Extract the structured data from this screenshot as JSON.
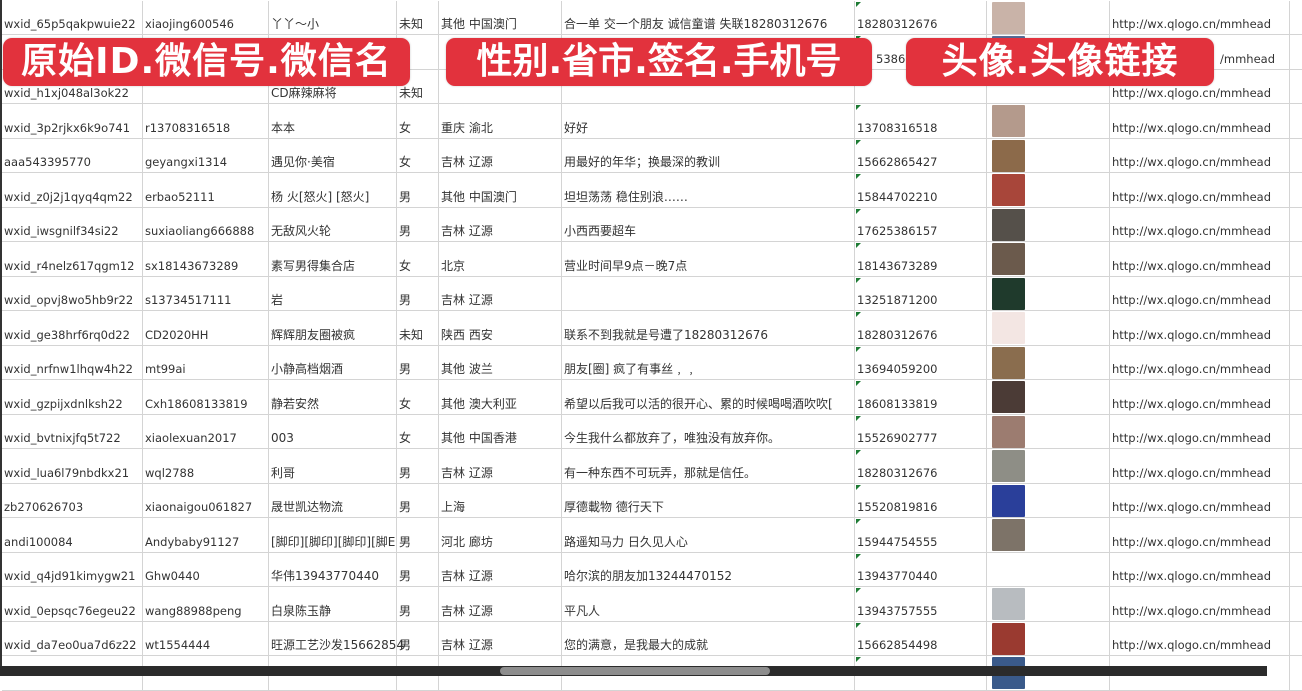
{
  "overlay_labels": [
    "原始ID.微信号.微信名",
    "性别.省市.签名.手机号",
    "头像.头像链接"
  ],
  "rows": [
    {
      "id": "wxid_65p5qakpwuie22",
      "wechat": "xiaojing600546",
      "name": "丫丫～小",
      "gender": "未知",
      "region": "其他 中国澳门",
      "signature": "合一单 交一个朋友 诚信童谱 失联18280312676",
      "phone": "18280312676",
      "avatar_color": "#c9b3a8",
      "link": "http://wx.qlogo.cn/mmhead"
    },
    {
      "id": "",
      "wechat": "",
      "name": "",
      "gender": "",
      "region": "",
      "signature": "",
      "phone": "5386",
      "avatar_color": "#5a6f9a",
      "link": "/mmhead"
    },
    {
      "id": "wxid_h1xj048al3ok22",
      "wechat": "",
      "name": "CD麻辣麻将",
      "gender": "未知",
      "region": "",
      "signature": "",
      "phone": "",
      "avatar_color": "",
      "link": "http://wx.qlogo.cn/mmhead"
    },
    {
      "id": "wxid_3p2rjkx6k9o741",
      "wechat": "r13708316518",
      "name": "本本",
      "gender": "女",
      "region": "重庆 渝北",
      "signature": "好好",
      "phone": "13708316518",
      "avatar_color": "#b49a8c",
      "link": "http://wx.qlogo.cn/mmhead"
    },
    {
      "id": "aaa543395770",
      "wechat": "geyangxi1314",
      "name": "遇见你·美宿",
      "gender": "女",
      "region": "吉林 辽源",
      "signature": "用最好的年华；换最深的教训",
      "phone": "15662865427",
      "avatar_color": "#8c6a4a",
      "link": "http://wx.qlogo.cn/mmhead"
    },
    {
      "id": "wxid_z0j2j1qyq4qm22",
      "wechat": "erbao52111",
      "name": "杨 火[怒火] [怒火]",
      "gender": "男",
      "region": "其他 中国澳门",
      "signature": "坦坦荡荡 稳住别浪……",
      "phone": "15844702210",
      "avatar_color": "#a8463a",
      "link": "http://wx.qlogo.cn/mmhead"
    },
    {
      "id": "wxid_iwsgnilf34si22",
      "wechat": "suxiaoliang666888",
      "name": "无敌风火轮",
      "gender": "男",
      "region": "吉林 辽源",
      "signature": "小西西要超车",
      "phone": "17625386157",
      "avatar_color": "#55504a",
      "link": "http://wx.qlogo.cn/mmhead"
    },
    {
      "id": "wxid_r4nelz617qgm12",
      "wechat": "sx18143673289",
      "name": "素写男得集合店",
      "gender": "女",
      "region": "北京",
      "signature": "营业时间早9点－晚7点",
      "phone": "18143673289",
      "avatar_color": "#6b5a4c",
      "link": "http://wx.qlogo.cn/mmhead"
    },
    {
      "id": "wxid_opvj8wo5hb9r22",
      "wechat": "s13734517111",
      "name": "岩",
      "gender": "男",
      "region": "吉林 辽源",
      "signature": "",
      "phone": "13251871200",
      "avatar_color": "#1f3a2c",
      "link": "http://wx.qlogo.cn/mmhead"
    },
    {
      "id": "wxid_ge38hrf6rq0d22",
      "wechat": "CD2020HH",
      "name": "辉辉朋友圈被疯",
      "gender": "未知",
      "region": "陕西 西安",
      "signature": "联系不到我就是号遭了18280312676",
      "phone": "18280312676",
      "avatar_color": "#f3e6e3",
      "link": "http://wx.qlogo.cn/mmhead"
    },
    {
      "id": "wxid_nrfnw1lhqw4h22",
      "wechat": "mt99ai",
      "name": "小静高档烟酒",
      "gender": "男",
      "region": "其他 波兰",
      "signature": "朋友[圈] 疯了有事丝﹐﹐",
      "phone": "13694059200",
      "avatar_color": "#8a6d4e",
      "link": "http://wx.qlogo.cn/mmhead"
    },
    {
      "id": "wxid_gzpijxdnlksh22",
      "wechat": "Cxh18608133819",
      "name": "静若安然",
      "gender": "女",
      "region": "其他 澳大利亚",
      "signature": "希望以后我可以活的很开心、累的时候喝喝酒吹吹[",
      "phone": "18608133819",
      "avatar_color": "#4b3b36",
      "link": "http://wx.qlogo.cn/mmhead"
    },
    {
      "id": "wxid_bvtnixjfq5t722",
      "wechat": "xiaolexuan2017",
      "name": "003",
      "gender": "女",
      "region": "其他 中国香港",
      "signature": "今生我什么都放弃了，唯独没有放弃你。",
      "phone": "15526902777",
      "avatar_color": "#9c7c70",
      "link": "http://wx.qlogo.cn/mmhead"
    },
    {
      "id": "wxid_lua6l79nbdkx21",
      "wechat": "wql2788",
      "name": "利哥",
      "gender": "男",
      "region": "吉林 辽源",
      "signature": "有一种东西不可玩弄，那就是信任。",
      "phone": "18280312676",
      "avatar_color": "#8e8e86",
      "link": "http://wx.qlogo.cn/mmhead"
    },
    {
      "id": "zb270626703",
      "wechat": "xiaonaigou061827",
      "name": "晟世凯达物流",
      "gender": "男",
      "region": "上海",
      "signature": "厚德載物 德行天下",
      "phone": "15520819816",
      "avatar_color": "#2a3f9a",
      "link": "http://wx.qlogo.cn/mmhead"
    },
    {
      "id": "andi100084",
      "wechat": "Andybaby91127",
      "name": "[脚印][脚印][脚印][脚E",
      "gender": "男",
      "region": "河北 廊坊",
      "signature": "路遥知马力 日久见人心",
      "phone": "15944754555",
      "avatar_color": "#7d7368",
      "link": "http://wx.qlogo.cn/mmhead"
    },
    {
      "id": "wxid_q4jd91kimygw21",
      "wechat": "Ghw0440",
      "name": "华伟13943770440",
      "gender": "男",
      "region": "吉林 辽源",
      "signature": "哈尔滨的朋友加13244470152",
      "phone": "13943770440",
      "avatar_color": "#ffffff",
      "link": "http://wx.qlogo.cn/mmhead"
    },
    {
      "id": "wxid_0epsqc76egeu22",
      "wechat": "wang88988peng",
      "name": "白泉陈玉静",
      "gender": "男",
      "region": "吉林 辽源",
      "signature": "平凡人",
      "phone": "13943757555",
      "avatar_color": "#b8bcc0",
      "link": "http://wx.qlogo.cn/mmhead"
    },
    {
      "id": "wxid_da7eo0ua7d6z22",
      "wechat": "wt1554444",
      "name": "旺源工艺沙发15662854",
      "gender": "男",
      "region": "吉林 辽源",
      "signature": "您的满意，是我最大的成就",
      "phone": "15662854498",
      "avatar_color": "#9a3a30",
      "link": "http://wx.qlogo.cn/mmhead"
    },
    {
      "id": "",
      "wechat": "",
      "name": "",
      "gender": "",
      "region": "",
      "signature": "",
      "phone": "",
      "avatar_color": "#3a5a8a",
      "link": ""
    }
  ]
}
